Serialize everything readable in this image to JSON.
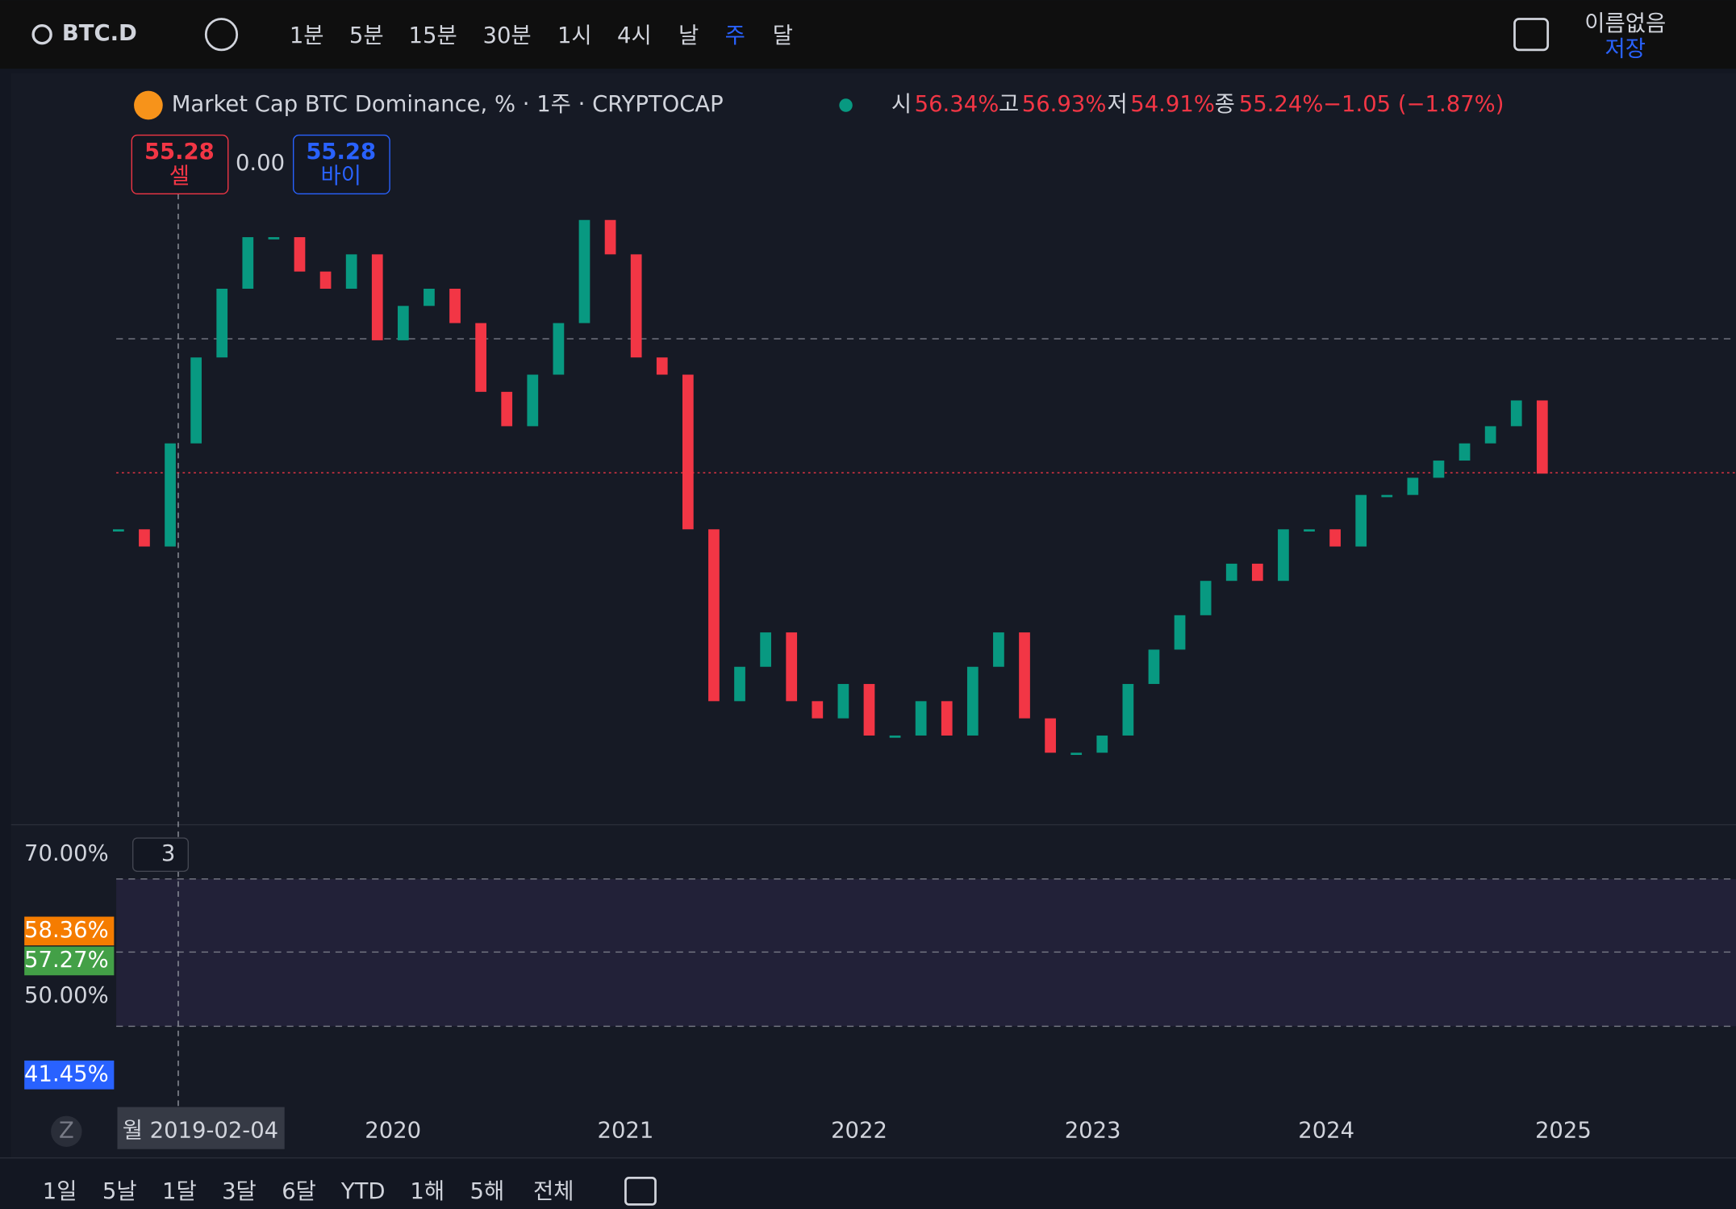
{
  "toolbar": {
    "symbol": "BTC.D",
    "intervals": [
      "1분",
      "5분",
      "15분",
      "30분",
      "1시",
      "4시",
      "날",
      "주",
      "달"
    ],
    "layout_name": "이름없음",
    "save": "저장"
  },
  "legend": {
    "title": "Market Cap BTC Dominance, % · 1주 · CRYPTOCAP",
    "open_label": "시",
    "open": "56.34%",
    "high_label": "고",
    "high": "56.93%",
    "low_label": "저",
    "low": "54.91%",
    "close_label": "종",
    "close": "55.24%",
    "change": "−1.05 (−1.87%)"
  },
  "trade": {
    "sell_price": "55.28",
    "sell": "셀",
    "spread": "0.00",
    "buy_price": "55.28",
    "buy": "바이"
  },
  "price_chart": {
    "type": "candles",
    "ylim": [
      35,
      75
    ],
    "values": [
      52,
      51,
      57,
      62,
      66,
      69,
      69,
      67,
      66,
      68,
      63,
      65,
      66,
      64,
      60,
      58,
      61,
      64,
      70,
      68,
      62,
      61,
      52,
      42,
      44,
      46,
      42,
      41,
      43,
      40,
      40,
      42,
      40,
      44,
      46,
      41,
      39,
      39,
      40,
      43,
      45,
      47,
      49,
      50,
      49,
      52,
      52,
      51,
      54,
      54,
      55,
      56,
      57,
      58,
      59.5,
      55.24
    ]
  },
  "indicator": {
    "collapse": "3",
    "axis_labels": [
      "70.00%",
      "50.00%"
    ],
    "badges": [
      "58.36%",
      "57.27%",
      "41.45%"
    ]
  },
  "time_axis": {
    "crosshair_date": "월 2019-02-04",
    "years": [
      "2020",
      "2021",
      "2022",
      "2023",
      "2024",
      "2025"
    ]
  },
  "ranges": [
    "1일",
    "5날",
    "1달",
    "3달",
    "6달",
    "YTD",
    "1해",
    "5해",
    "전체"
  ],
  "z": "Z"
}
